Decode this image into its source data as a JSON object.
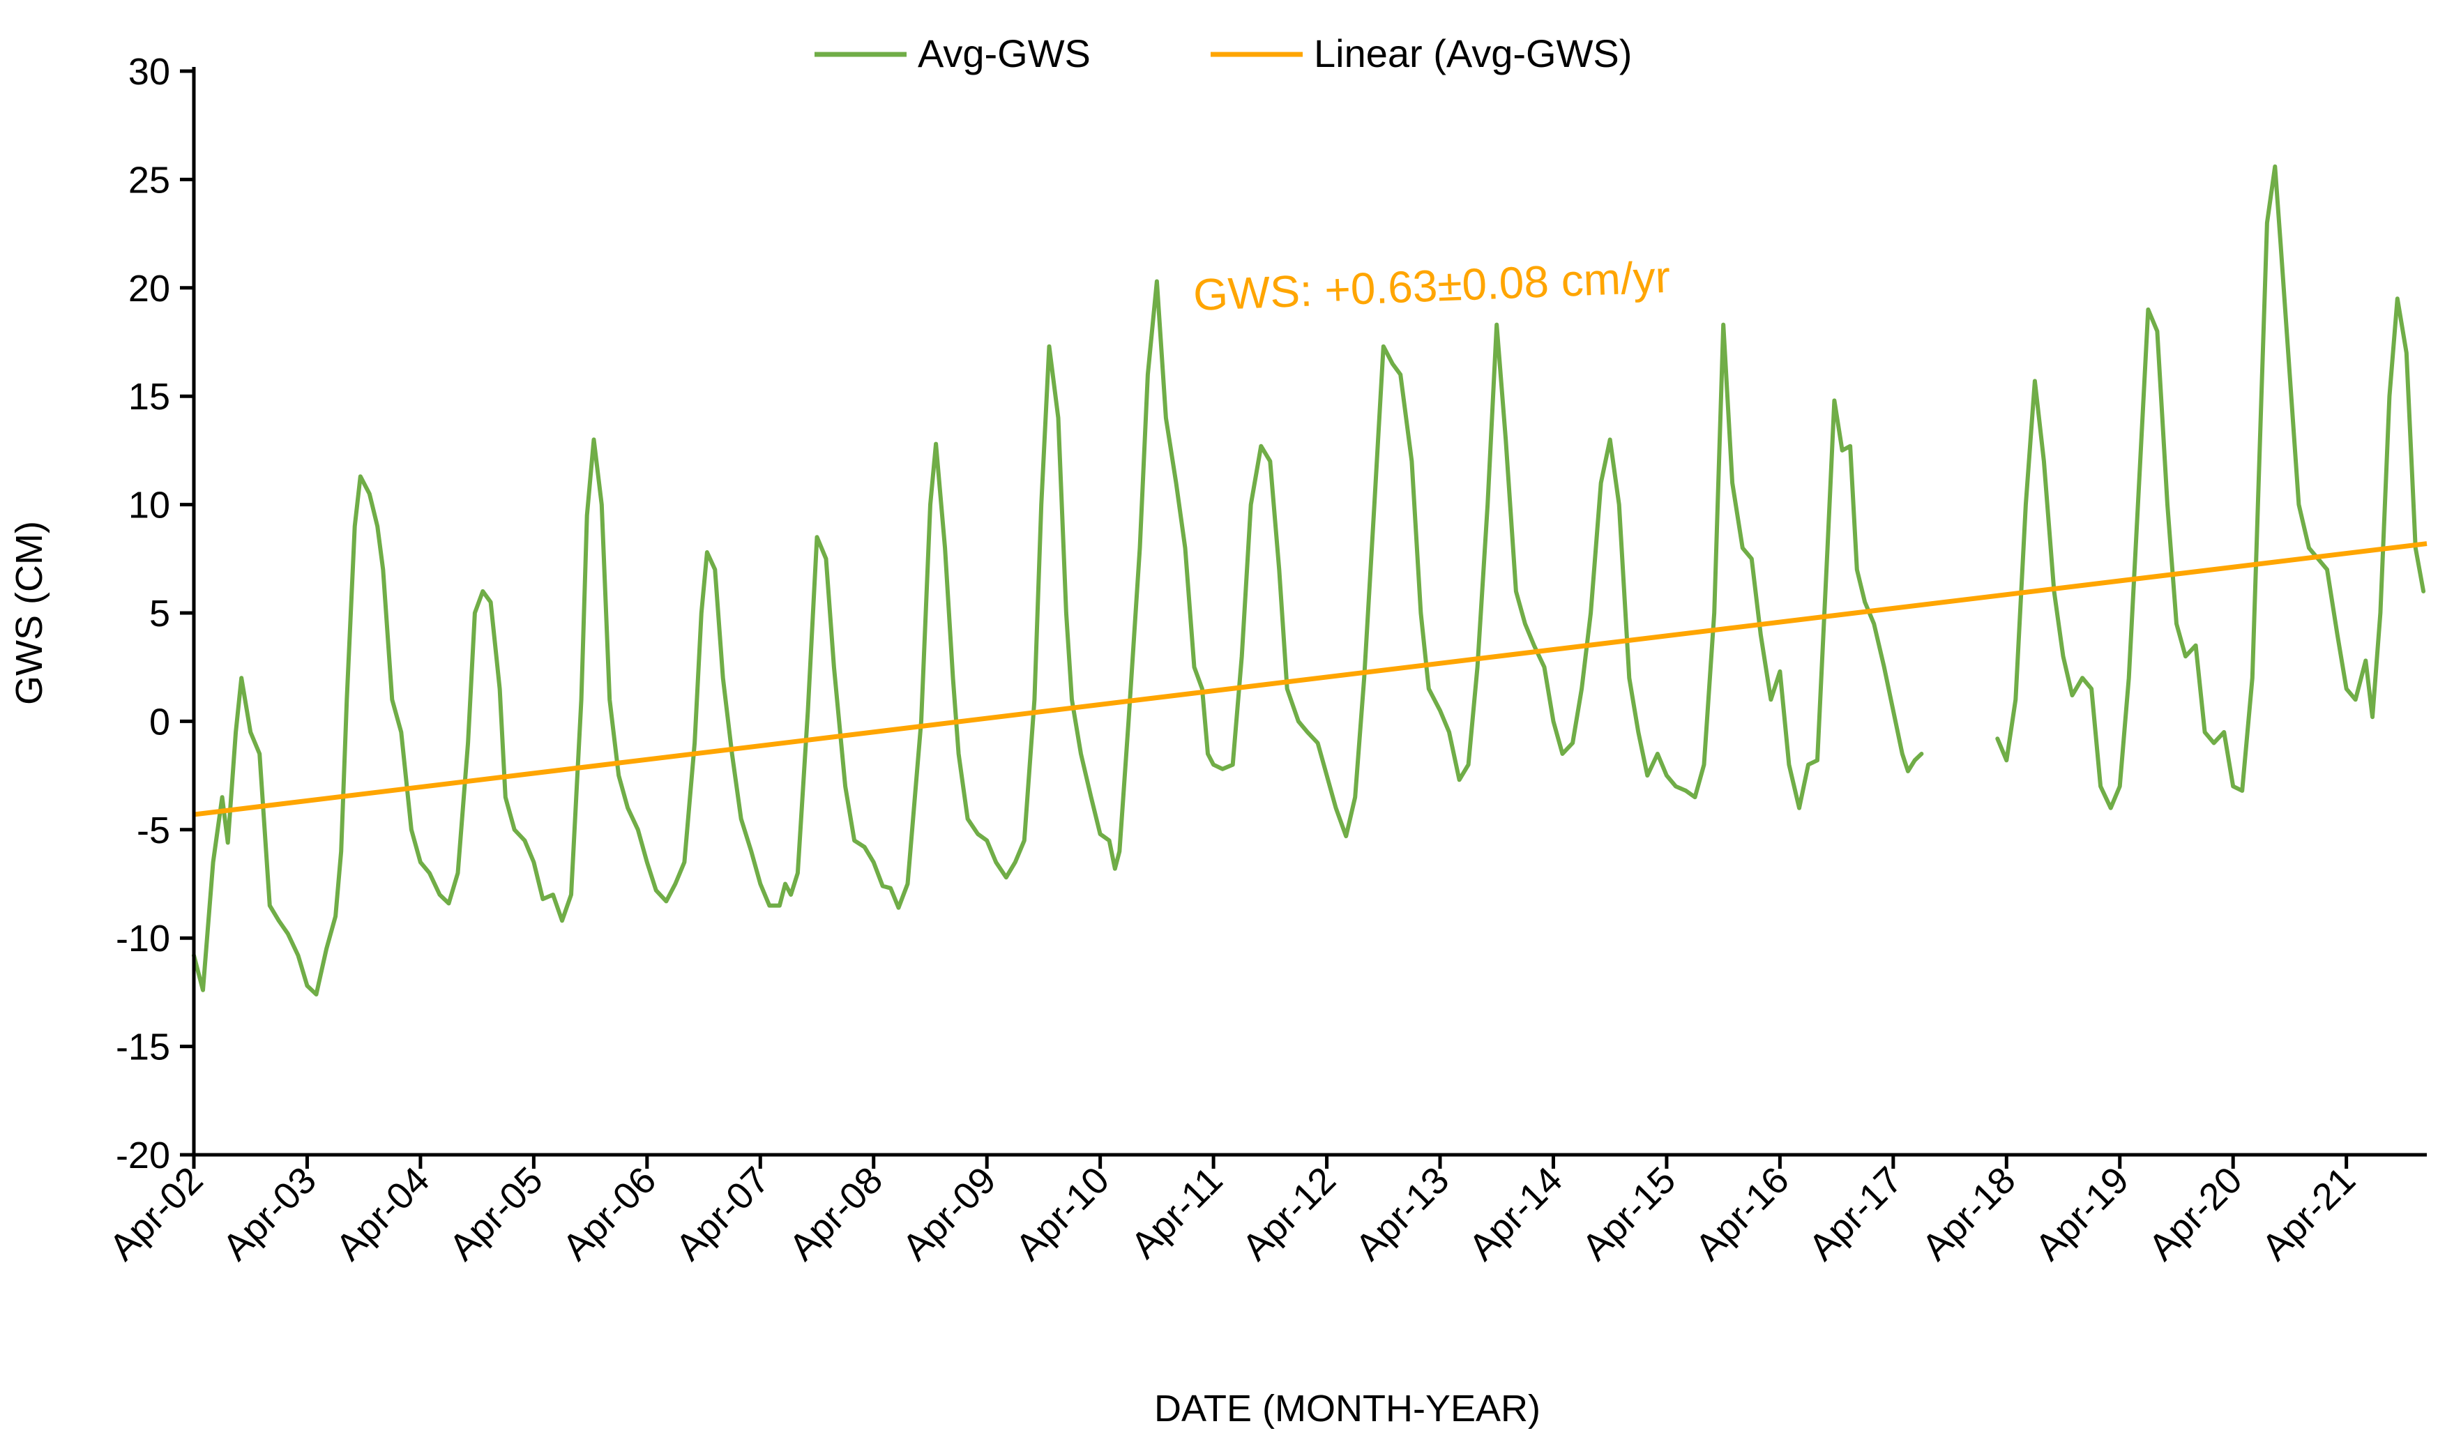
{
  "chart_data": {
    "type": "line",
    "title": "",
    "xlabel": "DATE (MONTH-YEAR)",
    "ylabel": "GWS (CM)",
    "ylim": [
      -20,
      30
    ],
    "yticks": [
      -20,
      -15,
      -10,
      -5,
      0,
      5,
      10,
      15,
      20,
      25,
      30
    ],
    "xlim": [
      2002.25,
      2021.96
    ],
    "xticks": [
      {
        "label": "Apr-02",
        "x": 2002.25
      },
      {
        "label": "Apr-03",
        "x": 2003.25
      },
      {
        "label": "Apr-04",
        "x": 2004.25
      },
      {
        "label": "Apr-05",
        "x": 2005.25
      },
      {
        "label": "Apr-06",
        "x": 2006.25
      },
      {
        "label": "Apr-07",
        "x": 2007.25
      },
      {
        "label": "Apr-08",
        "x": 2008.25
      },
      {
        "label": "Apr-09",
        "x": 2009.25
      },
      {
        "label": "Apr-10",
        "x": 2010.25
      },
      {
        "label": "Apr-11",
        "x": 2011.25
      },
      {
        "label": "Apr-12",
        "x": 2012.25
      },
      {
        "label": "Apr-13",
        "x": 2013.25
      },
      {
        "label": "Apr-14",
        "x": 2014.25
      },
      {
        "label": "Apr-15",
        "x": 2015.25
      },
      {
        "label": "Apr-16",
        "x": 2016.25
      },
      {
        "label": "Apr-17",
        "x": 2017.25
      },
      {
        "label": "Apr-18",
        "x": 2018.25
      },
      {
        "label": "Apr-19",
        "x": 2019.25
      },
      {
        "label": "Apr-20",
        "x": 2020.25
      },
      {
        "label": "Apr-21",
        "x": 2021.25
      }
    ],
    "grid": false,
    "legend": {
      "placement": "top-center",
      "entries": [
        "Avg-GWS",
        "Linear (Avg-GWS)"
      ]
    },
    "annotation": {
      "text": "GWS: +0.63±0.08 cm/yr",
      "color": "#ffa500"
    },
    "colors": {
      "series": "#70ad47",
      "trend": "#ffa500",
      "axis": "#000000"
    },
    "series": [
      {
        "name": "Avg-GWS",
        "segments": [
          [
            [
              2002.25,
              -10.8
            ],
            [
              2002.33,
              -12.4
            ],
            [
              2002.42,
              -6.5
            ],
            [
              2002.5,
              -3.5
            ],
            [
              2002.55,
              -5.6
            ],
            [
              2002.62,
              -0.5
            ],
            [
              2002.67,
              2.0
            ],
            [
              2002.75,
              -0.5
            ],
            [
              2002.83,
              -1.5
            ],
            [
              2002.92,
              -8.5
            ],
            [
              2003.0,
              -9.2
            ],
            [
              2003.08,
              -9.8
            ],
            [
              2003.17,
              -10.8
            ],
            [
              2003.25,
              -12.2
            ],
            [
              2003.33,
              -12.6
            ],
            [
              2003.42,
              -10.5
            ],
            [
              2003.5,
              -9.0
            ],
            [
              2003.55,
              -6.0
            ],
            [
              2003.6,
              1.0
            ],
            [
              2003.67,
              9.0
            ],
            [
              2003.72,
              11.3
            ],
            [
              2003.8,
              10.5
            ],
            [
              2003.87,
              9.0
            ],
            [
              2003.92,
              7.0
            ],
            [
              2004.0,
              1.0
            ],
            [
              2004.08,
              -0.5
            ],
            [
              2004.17,
              -5.0
            ],
            [
              2004.25,
              -6.5
            ],
            [
              2004.33,
              -7.0
            ],
            [
              2004.42,
              -8.0
            ],
            [
              2004.5,
              -8.4
            ],
            [
              2004.58,
              -7.0
            ],
            [
              2004.67,
              -1.0
            ],
            [
              2004.73,
              5.0
            ],
            [
              2004.8,
              6.0
            ],
            [
              2004.87,
              5.5
            ],
            [
              2004.95,
              1.5
            ],
            [
              2005.0,
              -3.5
            ],
            [
              2005.08,
              -5.0
            ],
            [
              2005.17,
              -5.5
            ],
            [
              2005.25,
              -6.5
            ],
            [
              2005.33,
              -8.2
            ],
            [
              2005.42,
              -8.0
            ],
            [
              2005.5,
              -9.2
            ],
            [
              2005.58,
              -8.0
            ],
            [
              2005.67,
              1.0
            ],
            [
              2005.72,
              9.5
            ],
            [
              2005.78,
              13.0
            ],
            [
              2005.85,
              10.0
            ],
            [
              2005.92,
              1.0
            ],
            [
              2006.0,
              -2.5
            ],
            [
              2006.08,
              -4.0
            ],
            [
              2006.17,
              -5.0
            ],
            [
              2006.25,
              -6.5
            ],
            [
              2006.33,
              -7.8
            ],
            [
              2006.42,
              -8.3
            ],
            [
              2006.5,
              -7.5
            ],
            [
              2006.58,
              -6.5
            ],
            [
              2006.67,
              -1.0
            ],
            [
              2006.73,
              5.0
            ],
            [
              2006.78,
              7.8
            ],
            [
              2006.85,
              7.0
            ],
            [
              2006.92,
              2.0
            ],
            [
              2007.0,
              -1.5
            ],
            [
              2007.08,
              -4.5
            ],
            [
              2007.17,
              -6.0
            ],
            [
              2007.25,
              -7.5
            ],
            [
              2007.33,
              -8.5
            ],
            [
              2007.42,
              -8.5
            ],
            [
              2007.47,
              -7.5
            ],
            [
              2007.52,
              -8.0
            ],
            [
              2007.58,
              -7.0
            ],
            [
              2007.67,
              0.5
            ],
            [
              2007.75,
              8.5
            ],
            [
              2007.83,
              7.5
            ],
            [
              2007.9,
              2.5
            ],
            [
              2008.0,
              -3.0
            ],
            [
              2008.08,
              -5.5
            ],
            [
              2008.17,
              -5.8
            ],
            [
              2008.25,
              -6.5
            ],
            [
              2008.33,
              -7.6
            ],
            [
              2008.4,
              -7.7
            ],
            [
              2008.47,
              -8.6
            ],
            [
              2008.55,
              -7.5
            ],
            [
              2008.67,
              0.0
            ],
            [
              2008.75,
              10.0
            ],
            [
              2008.8,
              12.8
            ],
            [
              2008.88,
              8.0
            ],
            [
              2008.95,
              2.0
            ],
            [
              2009.0,
              -1.5
            ],
            [
              2009.08,
              -4.5
            ],
            [
              2009.17,
              -5.2
            ],
            [
              2009.25,
              -5.5
            ],
            [
              2009.33,
              -6.5
            ],
            [
              2009.42,
              -7.2
            ],
            [
              2009.5,
              -6.5
            ],
            [
              2009.58,
              -5.5
            ],
            [
              2009.67,
              1.0
            ],
            [
              2009.73,
              10.0
            ],
            [
              2009.8,
              17.3
            ],
            [
              2009.88,
              14.0
            ],
            [
              2009.95,
              5.0
            ],
            [
              2010.0,
              1.0
            ],
            [
              2010.08,
              -1.5
            ],
            [
              2010.17,
              -3.5
            ],
            [
              2010.25,
              -5.2
            ],
            [
              2010.33,
              -5.5
            ],
            [
              2010.38,
              -6.8
            ],
            [
              2010.42,
              -6.0
            ],
            [
              2010.5,
              0.0
            ],
            [
              2010.6,
              8.0
            ],
            [
              2010.67,
              16.0
            ],
            [
              2010.75,
              20.3
            ],
            [
              2010.83,
              14.0
            ],
            [
              2010.92,
              11.0
            ],
            [
              2011.0,
              8.0
            ],
            [
              2011.08,
              2.5
            ],
            [
              2011.15,
              1.5
            ],
            [
              2011.2,
              -1.5
            ],
            [
              2011.25,
              -2.0
            ],
            [
              2011.33,
              -2.2
            ],
            [
              2011.42,
              -2.0
            ],
            [
              2011.5,
              3.0
            ],
            [
              2011.58,
              10.0
            ],
            [
              2011.67,
              12.7
            ],
            [
              2011.75,
              12.0
            ],
            [
              2011.83,
              7.0
            ],
            [
              2011.9,
              1.5
            ],
            [
              2012.0,
              0.0
            ],
            [
              2012.08,
              -0.5
            ],
            [
              2012.17,
              -1.0
            ],
            [
              2012.25,
              -2.5
            ],
            [
              2012.33,
              -4.0
            ],
            [
              2012.42,
              -5.3
            ],
            [
              2012.5,
              -3.5
            ],
            [
              2012.58,
              2.0
            ],
            [
              2012.67,
              10.0
            ],
            [
              2012.75,
              17.3
            ],
            [
              2012.83,
              16.5
            ],
            [
              2012.9,
              16.0
            ],
            [
              2013.0,
              12.0
            ],
            [
              2013.08,
              5.0
            ],
            [
              2013.15,
              1.5
            ],
            [
              2013.25,
              0.5
            ],
            [
              2013.33,
              -0.5
            ],
            [
              2013.42,
              -2.7
            ],
            [
              2013.5,
              -2.0
            ],
            [
              2013.58,
              2.5
            ],
            [
              2013.67,
              10.0
            ],
            [
              2013.75,
              18.3
            ],
            [
              2013.83,
              13.0
            ],
            [
              2013.92,
              6.0
            ],
            [
              2014.0,
              4.5
            ],
            [
              2014.08,
              3.5
            ],
            [
              2014.17,
              2.5
            ],
            [
              2014.25,
              0.0
            ],
            [
              2014.33,
              -1.5
            ],
            [
              2014.42,
              -1.0
            ],
            [
              2014.5,
              1.5
            ],
            [
              2014.58,
              5.0
            ],
            [
              2014.67,
              11.0
            ],
            [
              2014.75,
              13.0
            ],
            [
              2014.83,
              10.0
            ],
            [
              2014.92,
              2.0
            ],
            [
              2015.0,
              -0.5
            ],
            [
              2015.08,
              -2.5
            ],
            [
              2015.17,
              -1.5
            ],
            [
              2015.25,
              -2.5
            ],
            [
              2015.33,
              -3.0
            ],
            [
              2015.42,
              -3.2
            ],
            [
              2015.5,
              -3.5
            ],
            [
              2015.58,
              -2.0
            ],
            [
              2015.67,
              5.0
            ],
            [
              2015.75,
              18.3
            ],
            [
              2015.83,
              11.0
            ],
            [
              2015.92,
              8.0
            ],
            [
              2016.0,
              7.5
            ],
            [
              2016.08,
              4.0
            ],
            [
              2016.17,
              1.0
            ],
            [
              2016.25,
              2.3
            ],
            [
              2016.33,
              -2.0
            ],
            [
              2016.42,
              -4.0
            ],
            [
              2016.5,
              -2.0
            ],
            [
              2016.58,
              -1.8
            ],
            [
              2016.67,
              8.0
            ],
            [
              2016.73,
              14.8
            ],
            [
              2016.8,
              12.5
            ],
            [
              2016.87,
              12.7
            ],
            [
              2016.93,
              7.0
            ],
            [
              2017.0,
              5.5
            ],
            [
              2017.08,
              4.5
            ],
            [
              2017.17,
              2.5
            ],
            [
              2017.25,
              0.5
            ],
            [
              2017.33,
              -1.5
            ],
            [
              2017.38,
              -2.3
            ],
            [
              2017.44,
              -1.8
            ],
            [
              2017.5,
              -1.5
            ]
          ],
          [
            [
              2018.17,
              -0.8
            ],
            [
              2018.25,
              -1.8
            ],
            [
              2018.33,
              1.0
            ],
            [
              2018.42,
              10.0
            ],
            [
              2018.5,
              15.7
            ],
            [
              2018.58,
              12.0
            ],
            [
              2018.67,
              6.0
            ],
            [
              2018.75,
              3.0
            ],
            [
              2018.83,
              1.2
            ],
            [
              2018.92,
              2.0
            ],
            [
              2019.0,
              1.5
            ],
            [
              2019.08,
              -3.0
            ],
            [
              2019.17,
              -4.0
            ],
            [
              2019.25,
              -3.0
            ],
            [
              2019.33,
              2.0
            ],
            [
              2019.42,
              11.0
            ],
            [
              2019.5,
              19.0
            ],
            [
              2019.58,
              18.0
            ],
            [
              2019.67,
              10.0
            ],
            [
              2019.75,
              4.5
            ],
            [
              2019.83,
              3.0
            ],
            [
              2019.92,
              3.5
            ],
            [
              2020.0,
              -0.5
            ],
            [
              2020.08,
              -1.0
            ],
            [
              2020.17,
              -0.5
            ],
            [
              2020.25,
              -3.0
            ],
            [
              2020.33,
              -3.2
            ],
            [
              2020.42,
              2.0
            ],
            [
              2020.5,
              15.0
            ],
            [
              2020.55,
              23.0
            ],
            [
              2020.62,
              25.6
            ],
            [
              2020.67,
              22.0
            ],
            [
              2020.75,
              16.0
            ],
            [
              2020.83,
              10.0
            ],
            [
              2020.92,
              8.0
            ],
            [
              2021.0,
              7.5
            ],
            [
              2021.08,
              7.0
            ],
            [
              2021.17,
              4.0
            ],
            [
              2021.25,
              1.5
            ],
            [
              2021.33,
              1.0
            ],
            [
              2021.42,
              2.8
            ],
            [
              2021.48,
              0.2
            ],
            [
              2021.55,
              5.0
            ],
            [
              2021.63,
              15.0
            ],
            [
              2021.7,
              19.5
            ],
            [
              2021.78,
              17.0
            ],
            [
              2021.86,
              8.0
            ],
            [
              2021.93,
              6.0
            ]
          ]
        ]
      },
      {
        "name": "Linear (Avg-GWS)",
        "points": [
          [
            2002.25,
            -4.3
          ],
          [
            2021.96,
            8.2
          ]
        ]
      }
    ]
  }
}
